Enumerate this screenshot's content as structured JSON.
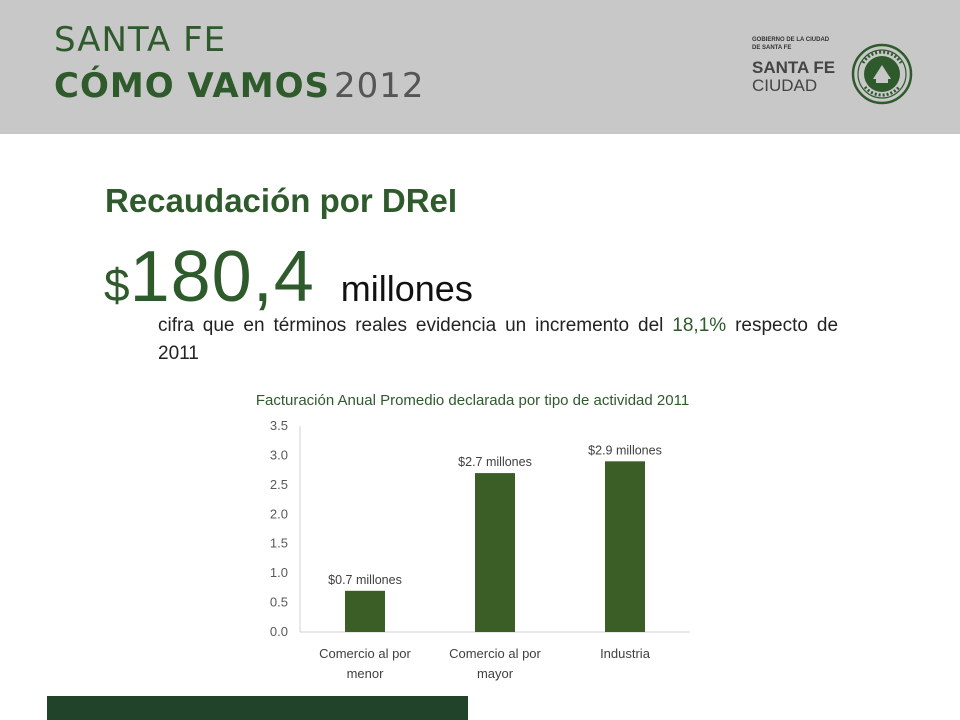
{
  "header": {
    "brand_line1": "SANTA FE",
    "brand_line2": "CÓMO VAMOS",
    "brand_year": "2012",
    "gov_small_1": "GOBIERNO DE LA CIUDAD",
    "gov_small_2": "DE SANTA FE",
    "gov_city_1": "SANTA FE",
    "gov_city_2": "CIUDAD",
    "seal_top_text": "BOLSA DE COMERCIO",
    "seal_bottom_text": "DE SANTA FE"
  },
  "content": {
    "title": "Recaudación por DReI",
    "currency": "$",
    "amount": "180,4",
    "unit": "millones",
    "desc_before": "cifra que en términos reales evidencia un incremento del",
    "desc_pct": "18,1%",
    "desc_after": "respecto de 2011"
  },
  "colors": {
    "brand_green": "#2e5a2c",
    "bar_green": "#3a5e26",
    "footer_bar": "#21432a"
  },
  "chart_data": {
    "type": "bar",
    "title": "Facturación Anual Promedio declarada por tipo de actividad 2011",
    "categories": [
      [
        "Comercio al por",
        "menor"
      ],
      [
        "Comercio al por",
        "mayor"
      ],
      [
        "Industria"
      ]
    ],
    "values": [
      0.7,
      2.7,
      2.9
    ],
    "data_labels": [
      "$0.7 millones",
      "$2.7 millones",
      "$2.9 millones"
    ],
    "yticks": [
      "0.0",
      "0.5",
      "1.0",
      "1.5",
      "2.0",
      "2.5",
      "3.0",
      "3.5"
    ],
    "ylim": [
      0,
      3.5
    ],
    "grid": false,
    "legend": "none"
  }
}
